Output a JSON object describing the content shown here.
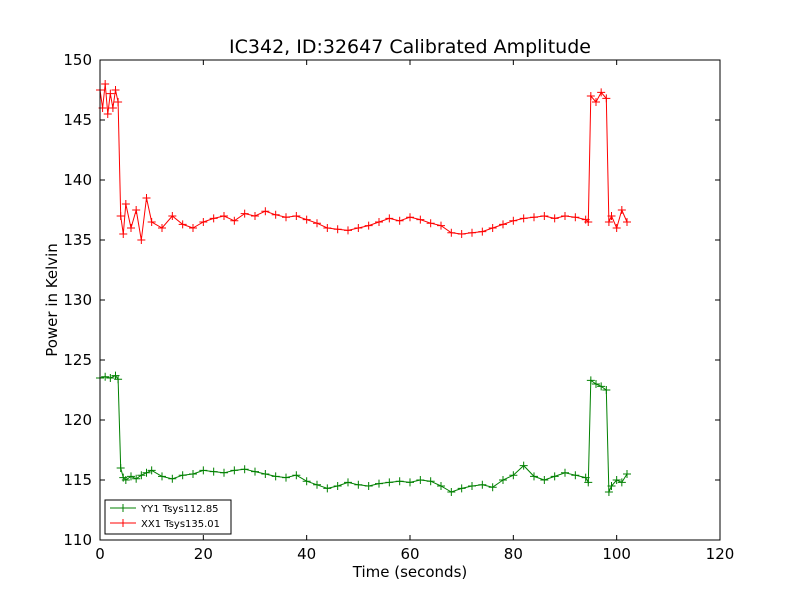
{
  "chart_data": {
    "type": "line",
    "title": "IC342, ID:32647 Calibrated Amplitude",
    "xlabel": "Time (seconds)",
    "ylabel": "Power in Kelvin",
    "xlim": [
      0,
      120
    ],
    "ylim": [
      110,
      150
    ],
    "xticks": [
      0,
      20,
      40,
      60,
      80,
      100,
      120
    ],
    "yticks": [
      110,
      115,
      120,
      125,
      130,
      135,
      140,
      145,
      150
    ],
    "grid": false,
    "legend_position": "lower-left",
    "marker": "plus",
    "series": [
      {
        "name": "YY1 Tsys112.85",
        "color": "#008000",
        "x": [
          0,
          1,
          2,
          3,
          3.5,
          4,
          4.5,
          5,
          6,
          7,
          8,
          9,
          10,
          12,
          14,
          16,
          18,
          20,
          22,
          24,
          26,
          28,
          30,
          32,
          34,
          36,
          38,
          40,
          42,
          44,
          46,
          48,
          50,
          52,
          54,
          56,
          58,
          60,
          62,
          64,
          66,
          68,
          70,
          72,
          74,
          76,
          78,
          80,
          82,
          84,
          86,
          88,
          90,
          92,
          94,
          94.5,
          95,
          96,
          97,
          98,
          98.5,
          99,
          100,
          101,
          102
        ],
        "y": [
          123.5,
          123.6,
          123.5,
          123.7,
          123.4,
          116.0,
          115.2,
          115.0,
          115.3,
          115.1,
          115.4,
          115.6,
          115.8,
          115.3,
          115.1,
          115.4,
          115.5,
          115.8,
          115.7,
          115.6,
          115.8,
          115.9,
          115.7,
          115.5,
          115.3,
          115.2,
          115.4,
          114.9,
          114.6,
          114.3,
          114.5,
          114.8,
          114.6,
          114.5,
          114.7,
          114.8,
          114.9,
          114.8,
          115.0,
          114.9,
          114.5,
          114.0,
          114.3,
          114.5,
          114.6,
          114.4,
          115.0,
          115.4,
          116.2,
          115.3,
          115.0,
          115.3,
          115.6,
          115.4,
          115.2,
          114.8,
          123.3,
          123.0,
          122.8,
          122.5,
          114.0,
          114.5,
          115.0,
          114.8,
          115.5
        ]
      },
      {
        "name": "XX1 Tsys135.01",
        "color": "#ff0000",
        "x": [
          0,
          0.5,
          1,
          1.5,
          2,
          2.5,
          3,
          3.5,
          4,
          4.5,
          5,
          6,
          7,
          8,
          9,
          10,
          12,
          14,
          16,
          18,
          20,
          22,
          24,
          26,
          28,
          30,
          32,
          34,
          36,
          38,
          40,
          42,
          44,
          46,
          48,
          50,
          52,
          54,
          56,
          58,
          60,
          62,
          64,
          66,
          68,
          70,
          72,
          74,
          76,
          78,
          80,
          82,
          84,
          86,
          88,
          90,
          92,
          94,
          94.5,
          95,
          96,
          97,
          98,
          98.5,
          99,
          100,
          101,
          102
        ],
        "y": [
          147.5,
          146.0,
          148.0,
          145.5,
          147.2,
          146.0,
          147.5,
          146.5,
          137.0,
          135.5,
          138.0,
          136.0,
          137.5,
          135.0,
          138.5,
          136.5,
          136.0,
          137.0,
          136.3,
          136.0,
          136.5,
          136.8,
          137.0,
          136.6,
          137.2,
          137.0,
          137.4,
          137.1,
          136.9,
          137.0,
          136.7,
          136.4,
          136.0,
          135.9,
          135.8,
          136.0,
          136.2,
          136.5,
          136.8,
          136.6,
          136.9,
          136.7,
          136.4,
          136.2,
          135.6,
          135.5,
          135.6,
          135.7,
          136.0,
          136.3,
          136.6,
          136.8,
          136.9,
          137.0,
          136.8,
          137.0,
          136.9,
          136.7,
          136.5,
          147.0,
          146.5,
          147.3,
          146.8,
          136.5,
          137.0,
          136.0,
          137.5,
          136.5
        ]
      }
    ]
  }
}
